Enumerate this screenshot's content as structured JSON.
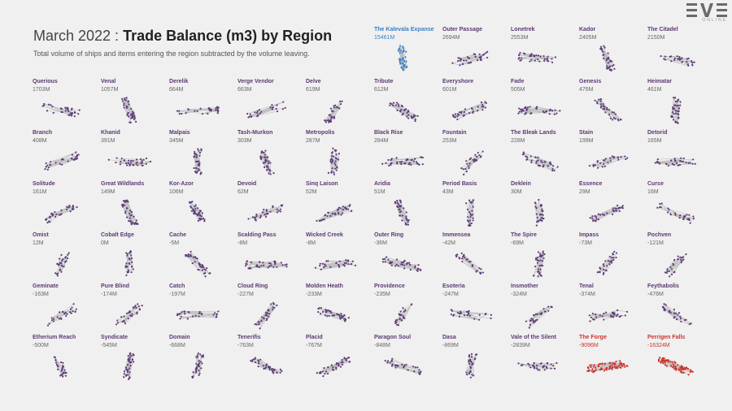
{
  "header": {
    "title_prefix": "March 2022 : ",
    "title_main": "Trade Balance (m3) by Region",
    "subtitle": "Total volume of ships and items entering the region subtracted by the volume leaving."
  },
  "logo": {
    "text": "EVE",
    "sub": "ONLINE"
  },
  "colors": {
    "normal": "#5e3c7a",
    "top": "#3a7fc4",
    "bottom": "#d0312d",
    "edge": "#bcbcbc"
  },
  "chart_data": {
    "type": "small-multiples",
    "title": "March 2022 : Trade Balance (m3) by Region",
    "subtitle": "Total volume of ships and items entering the region subtracted by the volume leaving.",
    "unit": "M m3",
    "regions": [
      {
        "name": "The Kalevala Expanse",
        "label": "15461M",
        "value": 15461,
        "highlight": "top"
      },
      {
        "name": "Outer Passage",
        "label": "2694M",
        "value": 2694
      },
      {
        "name": "Lonetrek",
        "label": "2553M",
        "value": 2553
      },
      {
        "name": "Kador",
        "label": "2405M",
        "value": 2405
      },
      {
        "name": "The Citadel",
        "label": "2150M",
        "value": 2150
      },
      {
        "name": "Querious",
        "label": "1703M",
        "value": 1703
      },
      {
        "name": "Venal",
        "label": "1057M",
        "value": 1057
      },
      {
        "name": "Derelik",
        "label": "664M",
        "value": 664
      },
      {
        "name": "Verge Vendor",
        "label": "663M",
        "value": 663
      },
      {
        "name": "Delve",
        "label": "619M",
        "value": 619
      },
      {
        "name": "Tribute",
        "label": "612M",
        "value": 612
      },
      {
        "name": "Everyshore",
        "label": "601M",
        "value": 601
      },
      {
        "name": "Fade",
        "label": "505M",
        "value": 505
      },
      {
        "name": "Genesis",
        "label": "476M",
        "value": 476
      },
      {
        "name": "Heimatar",
        "label": "461M",
        "value": 461
      },
      {
        "name": "Branch",
        "label": "408M",
        "value": 408
      },
      {
        "name": "Khanid",
        "label": "391M",
        "value": 391
      },
      {
        "name": "Malpais",
        "label": "345M",
        "value": 345
      },
      {
        "name": "Tash-Murkon",
        "label": "303M",
        "value": 303
      },
      {
        "name": "Metropolis",
        "label": "287M",
        "value": 287
      },
      {
        "name": "Black Rise",
        "label": "284M",
        "value": 284
      },
      {
        "name": "Fountain",
        "label": "253M",
        "value": 253
      },
      {
        "name": "The Bleak Lands",
        "label": "228M",
        "value": 228
      },
      {
        "name": "Stain",
        "label": "199M",
        "value": 199
      },
      {
        "name": "Detorid",
        "label": "165M",
        "value": 165
      },
      {
        "name": "Solitude",
        "label": "161M",
        "value": 161
      },
      {
        "name": "Great Wildlands",
        "label": "149M",
        "value": 149
      },
      {
        "name": "Kor-Azor",
        "label": "106M",
        "value": 106
      },
      {
        "name": "Devoid",
        "label": "62M",
        "value": 62
      },
      {
        "name": "Sinq Laison",
        "label": "52M",
        "value": 52
      },
      {
        "name": "Aridia",
        "label": "51M",
        "value": 51
      },
      {
        "name": "Period Basis",
        "label": "43M",
        "value": 43
      },
      {
        "name": "Deklein",
        "label": "30M",
        "value": 30
      },
      {
        "name": "Essence",
        "label": "29M",
        "value": 29
      },
      {
        "name": "Curse",
        "label": "16M",
        "value": 16
      },
      {
        "name": "Omist",
        "label": "12M",
        "value": 12
      },
      {
        "name": "Cobalt Edge",
        "label": "0M",
        "value": 0
      },
      {
        "name": "Cache",
        "label": "-5M",
        "value": -5
      },
      {
        "name": "Scalding Pass",
        "label": "-8M",
        "value": -8
      },
      {
        "name": "Wicked Creek",
        "label": "-8M",
        "value": -8
      },
      {
        "name": "Outer Ring",
        "label": "-36M",
        "value": -36
      },
      {
        "name": "Immensea",
        "label": "-42M",
        "value": -42
      },
      {
        "name": "The Spire",
        "label": "-69M",
        "value": -69
      },
      {
        "name": "Impass",
        "label": "-73M",
        "value": -73
      },
      {
        "name": "Pochven",
        "label": "-121M",
        "value": -121
      },
      {
        "name": "Geminate",
        "label": "-163M",
        "value": -163
      },
      {
        "name": "Pure Blind",
        "label": "-174M",
        "value": -174
      },
      {
        "name": "Catch",
        "label": "-197M",
        "value": -197
      },
      {
        "name": "Cloud Ring",
        "label": "-227M",
        "value": -227
      },
      {
        "name": "Molden Heath",
        "label": "-233M",
        "value": -233
      },
      {
        "name": "Providence",
        "label": "-235M",
        "value": -235
      },
      {
        "name": "Esoteria",
        "label": "-247M",
        "value": -247
      },
      {
        "name": "Insmother",
        "label": "-324M",
        "value": -324
      },
      {
        "name": "Tenal",
        "label": "-374M",
        "value": -374
      },
      {
        "name": "Feythabolis",
        "label": "-476M",
        "value": -476
      },
      {
        "name": "Etherium Reach",
        "label": "-500M",
        "value": -500
      },
      {
        "name": "Syndicate",
        "label": "-545M",
        "value": -545
      },
      {
        "name": "Domain",
        "label": "-668M",
        "value": -668
      },
      {
        "name": "Tenerifis",
        "label": "-763M",
        "value": -763
      },
      {
        "name": "Placid",
        "label": "-767M",
        "value": -767
      },
      {
        "name": "Paragon Soul",
        "label": "-848M",
        "value": -848
      },
      {
        "name": "Dasa",
        "label": "-869M",
        "value": -869
      },
      {
        "name": "Vale of the Silent",
        "label": "-2839M",
        "value": -2839
      },
      {
        "name": "The Forge",
        "label": "-9096M",
        "value": -9096,
        "highlight": "bottom"
      },
      {
        "name": "Perrigen Falls",
        "label": "-16324M",
        "value": -16324,
        "highlight": "bottom"
      }
    ]
  }
}
